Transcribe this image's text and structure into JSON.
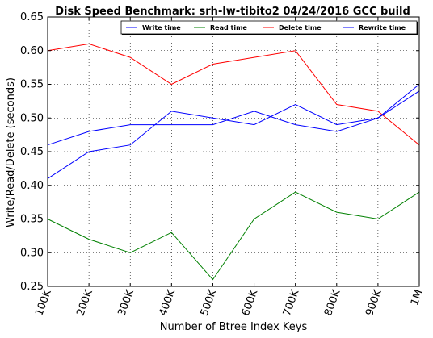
{
  "chart_data": {
    "type": "line",
    "title": "Disk Speed Benchmark: srh-lw-tibito2 04/24/2016 GCC build",
    "xlabel": "Number of Btree Index Keys",
    "ylabel": "Write/Read/Delete (seconds)",
    "categories": [
      "100K",
      "200K",
      "300K",
      "400K",
      "500K",
      "600K",
      "700K",
      "800K",
      "900K",
      "1M"
    ],
    "ylim": [
      0.25,
      0.65
    ],
    "yticks": [
      "0.25",
      "0.30",
      "0.35",
      "0.40",
      "0.45",
      "0.50",
      "0.55",
      "0.60",
      "0.65"
    ],
    "grid": true,
    "legend_position": "top-right",
    "series": [
      {
        "name": "Write time",
        "color": "#0000ff",
        "values": [
          0.46,
          0.48,
          0.49,
          0.49,
          0.49,
          0.51,
          0.49,
          0.48,
          0.5,
          0.54
        ]
      },
      {
        "name": "Read time",
        "color": "#008000",
        "values": [
          0.35,
          0.32,
          0.3,
          0.33,
          0.26,
          0.35,
          0.39,
          0.36,
          0.35,
          0.39
        ]
      },
      {
        "name": "Delete time",
        "color": "#ff0000",
        "values": [
          0.6,
          0.61,
          0.59,
          0.55,
          0.58,
          0.59,
          0.6,
          0.52,
          0.51,
          0.46
        ]
      },
      {
        "name": "Rewrite time",
        "color": "#0000ff",
        "values": [
          0.41,
          0.45,
          0.46,
          0.51,
          0.5,
          0.49,
          0.52,
          0.49,
          0.5,
          0.55
        ]
      }
    ]
  }
}
